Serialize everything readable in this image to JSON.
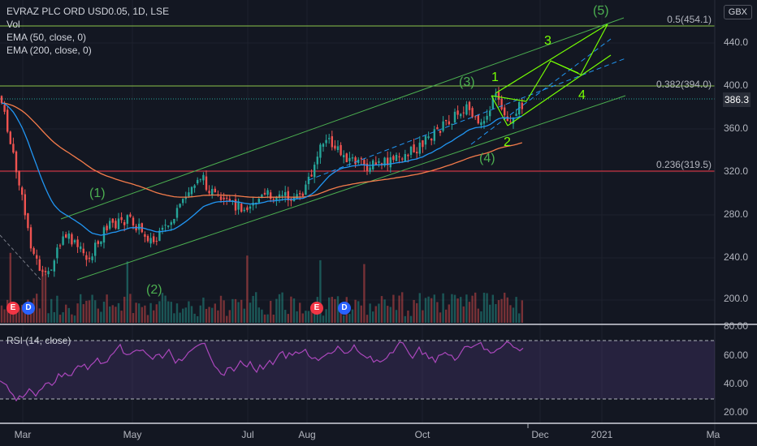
{
  "header": {
    "symbol": "EVRAZ PLC ORD USD0.05, 1D, LSE",
    "vol": "Vol",
    "ema50": "EMA (50, close, 0)",
    "ema200": "EMA (200, close, 0)",
    "unit": "GBX"
  },
  "price_scale": {
    "last_price": "386.3",
    "ticks": [
      "440.0",
      "400.0",
      "360.0",
      "320.0",
      "280.0",
      "240.0",
      "200.0"
    ]
  },
  "rsi_scale": {
    "ticks": [
      "80.00",
      "60.00",
      "40.00",
      "20.00"
    ]
  },
  "rsi_label": "RSI (14, close)",
  "time_axis": [
    "Mar",
    "May",
    "Jul",
    "Aug",
    "Oct",
    "Dec",
    "2021",
    "Ma"
  ],
  "fib_levels": [
    {
      "label": "0.5(454.1)",
      "color": "#8bc34a"
    },
    {
      "label": "0.382(394.0)",
      "color": "#8bc34a"
    },
    {
      "label": "0.236(319.5)",
      "color": "#f23645"
    }
  ],
  "wave_labels": [
    "(1)",
    "(2)",
    "(3)",
    "(4)",
    "(5)",
    "1",
    "2",
    "3",
    "4"
  ],
  "events": [
    {
      "type": "earnings",
      "text": "E"
    },
    {
      "type": "dividend",
      "text": "D"
    },
    {
      "type": "earnings",
      "text": "E"
    },
    {
      "type": "dividend",
      "text": "D"
    }
  ],
  "colors": {
    "background": "#131722",
    "up": "#26a69a",
    "down": "#ef5350",
    "ema50": "#2196f3",
    "ema200": "#f57c4b",
    "channel": "#4caf50",
    "rsi": "#9c27b0"
  }
}
